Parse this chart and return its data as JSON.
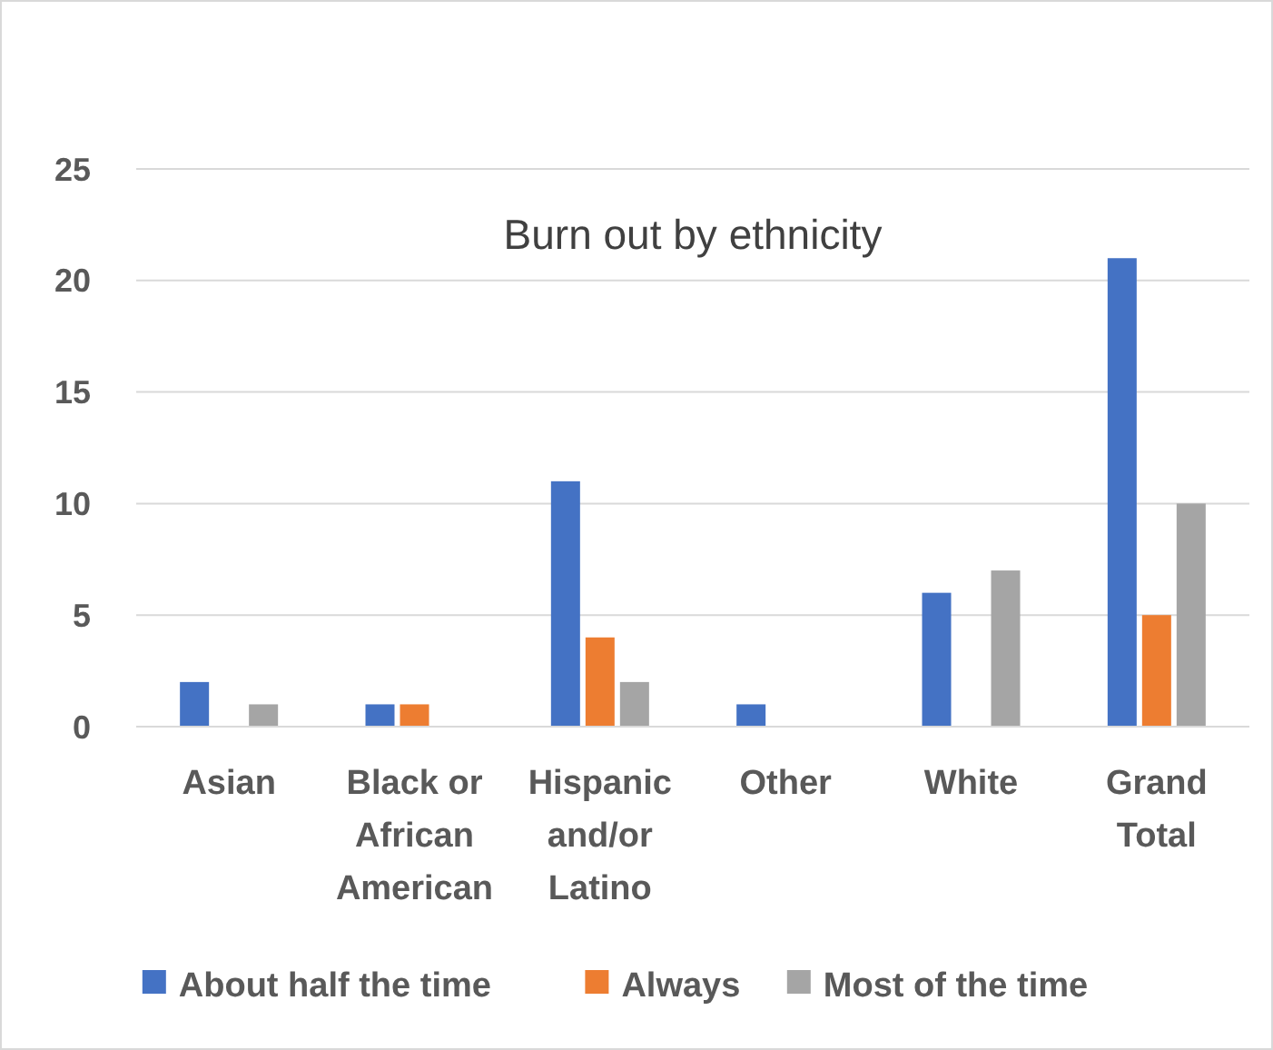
{
  "chart_data": {
    "type": "bar",
    "title": "Burn out by ethnicity",
    "categories": [
      "Asian",
      "Black or African American",
      "Hispanic and/or Latino",
      "Other",
      "White",
      "Grand Total"
    ],
    "series": [
      {
        "name": "About half the time",
        "color": "#4472c4",
        "values": [
          2,
          1,
          11,
          1,
          6,
          21
        ]
      },
      {
        "name": "Always",
        "color": "#ed7d31",
        "values": [
          null,
          1,
          4,
          null,
          null,
          5
        ]
      },
      {
        "name": "Most of the time",
        "color": "#a5a5a5",
        "values": [
          1,
          null,
          2,
          null,
          7,
          10
        ]
      }
    ],
    "ylim": [
      0,
      25
    ],
    "yticks": [
      0,
      5,
      10,
      15,
      20,
      25
    ],
    "grid": "y",
    "legend": "bottom"
  }
}
